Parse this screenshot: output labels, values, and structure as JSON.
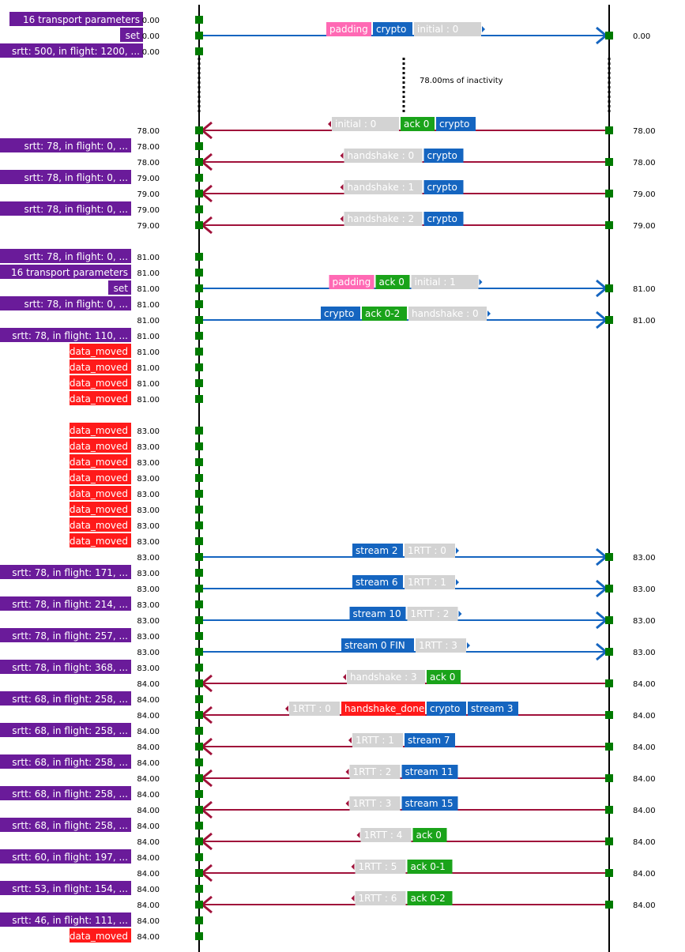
{
  "colors": {
    "client_event": "#6a1b9a",
    "data_moved": "#ff1a1a",
    "node": "#007a00",
    "sent_arrow": "#1565c0",
    "recv_arrow": "#a0113a",
    "frame_padding": "#ff69b4",
    "frame_crypto": "#1565c0",
    "frame_ack": "#1aa31a",
    "frame_stream": "#1565c0",
    "frame_handshake_done": "#ff1a1a",
    "header": "#d3d3d3"
  },
  "gap": {
    "text": "78.00ms of inactivity"
  },
  "rows": [
    {
      "ev": "16 transport parameters",
      "evc": "purple",
      "lt": "0.00"
    },
    {
      "ev": "set",
      "evc": "purple",
      "lt": "0.00",
      "dir": "out",
      "rt": "0.00",
      "frames": [
        {
          "t": "padding",
          "c": "pink"
        },
        {
          "t": "crypto",
          "c": "blue"
        }
      ],
      "hdr": "initial : 0"
    },
    {
      "ev": "srtt: 500, in flight: 1200, ...",
      "evc": "purple",
      "lt": "0.00"
    },
    {
      "gap": true
    },
    {
      "lt": "78.00",
      "dir": "in",
      "rt": "78.00",
      "frames": [
        {
          "t": "ack 0",
          "c": "green"
        },
        {
          "t": "crypto",
          "c": "blue"
        }
      ],
      "hdr": "initial : 0"
    },
    {
      "ev": "srtt: 78, in flight: 0, ...",
      "evc": "purple",
      "lt": "78.00"
    },
    {
      "lt": "78.00",
      "dir": "in",
      "rt": "78.00",
      "frames": [
        {
          "t": "crypto",
          "c": "blue"
        }
      ],
      "hdr": "handshake : 0"
    },
    {
      "ev": "srtt: 78, in flight: 0, ...",
      "evc": "purple",
      "lt": "79.00"
    },
    {
      "lt": "79.00",
      "dir": "in",
      "rt": "79.00",
      "frames": [
        {
          "t": "crypto",
          "c": "blue"
        }
      ],
      "hdr": "handshake : 1"
    },
    {
      "ev": "srtt: 78, in flight: 0, ...",
      "evc": "purple",
      "lt": "79.00"
    },
    {
      "lt": "79.00",
      "dir": "in",
      "rt": "79.00",
      "frames": [
        {
          "t": "crypto",
          "c": "blue"
        }
      ],
      "hdr": "handshake : 2"
    },
    {
      "blank": true
    },
    {
      "ev": "srtt: 78, in flight: 0, ...",
      "evc": "purple",
      "lt": "81.00"
    },
    {
      "ev": "16 transport parameters",
      "evc": "purple",
      "lt": "81.00"
    },
    {
      "ev": "set",
      "evc": "purple",
      "lt": "81.00",
      "dir": "out",
      "rt": "81.00",
      "frames": [
        {
          "t": "padding",
          "c": "pink"
        },
        {
          "t": "ack 0",
          "c": "green"
        }
      ],
      "hdr": "initial : 1"
    },
    {
      "ev": "srtt: 78, in flight: 0, ...",
      "evc": "purple",
      "lt": "81.00"
    },
    {
      "lt": "81.00",
      "dir": "out",
      "rt": "81.00",
      "frames": [
        {
          "t": "crypto",
          "c": "blue"
        },
        {
          "t": "ack 0-2",
          "c": "green"
        }
      ],
      "hdr": "handshake : 0"
    },
    {
      "ev": "srtt: 78, in flight: 110, ...",
      "evc": "purple",
      "lt": "81.00"
    },
    {
      "ev": "data_moved",
      "evc": "red",
      "lt": "81.00"
    },
    {
      "ev": "data_moved",
      "evc": "red",
      "lt": "81.00"
    },
    {
      "ev": "data_moved",
      "evc": "red",
      "lt": "81.00"
    },
    {
      "ev": "data_moved",
      "evc": "red",
      "lt": "81.00"
    },
    {
      "blank": true
    },
    {
      "ev": "data_moved",
      "evc": "red",
      "lt": "83.00"
    },
    {
      "ev": "data_moved",
      "evc": "red",
      "lt": "83.00"
    },
    {
      "ev": "data_moved",
      "evc": "red",
      "lt": "83.00"
    },
    {
      "ev": "data_moved",
      "evc": "red",
      "lt": "83.00"
    },
    {
      "ev": "data_moved",
      "evc": "red",
      "lt": "83.00"
    },
    {
      "ev": "data_moved",
      "evc": "red",
      "lt": "83.00"
    },
    {
      "ev": "data_moved",
      "evc": "red",
      "lt": "83.00"
    },
    {
      "ev": "data_moved",
      "evc": "red",
      "lt": "83.00"
    },
    {
      "lt": "83.00",
      "dir": "out",
      "rt": "83.00",
      "frames": [
        {
          "t": "stream 2",
          "c": "blue"
        }
      ],
      "hdr": "1RTT : 0"
    },
    {
      "ev": "srtt: 78, in flight: 171, ...",
      "evc": "purple",
      "lt": "83.00"
    },
    {
      "lt": "83.00",
      "dir": "out",
      "rt": "83.00",
      "frames": [
        {
          "t": "stream 6",
          "c": "blue"
        }
      ],
      "hdr": "1RTT : 1"
    },
    {
      "ev": "srtt: 78, in flight: 214, ...",
      "evc": "purple",
      "lt": "83.00"
    },
    {
      "lt": "83.00",
      "dir": "out",
      "rt": "83.00",
      "frames": [
        {
          "t": "stream 10",
          "c": "blue"
        }
      ],
      "hdr": "1RTT : 2"
    },
    {
      "ev": "srtt: 78, in flight: 257, ...",
      "evc": "purple",
      "lt": "83.00"
    },
    {
      "lt": "83.00",
      "dir": "out",
      "rt": "83.00",
      "frames": [
        {
          "t": "stream 0 FIN",
          "c": "blue"
        }
      ],
      "hdr": "1RTT : 3"
    },
    {
      "ev": "srtt: 78, in flight: 368, ...",
      "evc": "purple",
      "lt": "83.00"
    },
    {
      "lt": "84.00",
      "dir": "in",
      "rt": "84.00",
      "frames": [
        {
          "t": "ack 0",
          "c": "green"
        }
      ],
      "hdr": "handshake : 3"
    },
    {
      "ev": "srtt: 68, in flight: 258, ...",
      "evc": "purple",
      "lt": "84.00"
    },
    {
      "lt": "84.00",
      "dir": "in",
      "rt": "84.00",
      "frames": [
        {
          "t": "handshake_done",
          "c": "red"
        },
        {
          "t": "crypto",
          "c": "blue"
        },
        {
          "t": "stream 3",
          "c": "blue"
        }
      ],
      "hdr": "1RTT : 0"
    },
    {
      "ev": "srtt: 68, in flight: 258, ...",
      "evc": "purple",
      "lt": "84.00"
    },
    {
      "lt": "84.00",
      "dir": "in",
      "rt": "84.00",
      "frames": [
        {
          "t": "stream 7",
          "c": "blue"
        }
      ],
      "hdr": "1RTT : 1"
    },
    {
      "ev": "srtt: 68, in flight: 258, ...",
      "evc": "purple",
      "lt": "84.00"
    },
    {
      "lt": "84.00",
      "dir": "in",
      "rt": "84.00",
      "frames": [
        {
          "t": "stream 11",
          "c": "blue"
        }
      ],
      "hdr": "1RTT : 2"
    },
    {
      "ev": "srtt: 68, in flight: 258, ...",
      "evc": "purple",
      "lt": "84.00"
    },
    {
      "lt": "84.00",
      "dir": "in",
      "rt": "84.00",
      "frames": [
        {
          "t": "stream 15",
          "c": "blue"
        }
      ],
      "hdr": "1RTT : 3"
    },
    {
      "ev": "srtt: 68, in flight: 258, ...",
      "evc": "purple",
      "lt": "84.00"
    },
    {
      "lt": "84.00",
      "dir": "in",
      "rt": "84.00",
      "frames": [
        {
          "t": "ack 0",
          "c": "green"
        }
      ],
      "hdr": "1RTT : 4"
    },
    {
      "ev": "srtt: 60, in flight: 197, ...",
      "evc": "purple",
      "lt": "84.00"
    },
    {
      "lt": "84.00",
      "dir": "in",
      "rt": "84.00",
      "frames": [
        {
          "t": "ack 0-1",
          "c": "green"
        }
      ],
      "hdr": "1RTT : 5"
    },
    {
      "ev": "srtt: 53, in flight: 154, ...",
      "evc": "purple",
      "lt": "84.00"
    },
    {
      "lt": "84.00",
      "dir": "in",
      "rt": "84.00",
      "frames": [
        {
          "t": "ack 0-2",
          "c": "green"
        }
      ],
      "hdr": "1RTT : 6"
    },
    {
      "ev": "srtt: 46, in flight: 111, ...",
      "evc": "purple",
      "lt": "84.00"
    },
    {
      "ev": "data_moved",
      "evc": "red",
      "lt": "84.00"
    }
  ]
}
